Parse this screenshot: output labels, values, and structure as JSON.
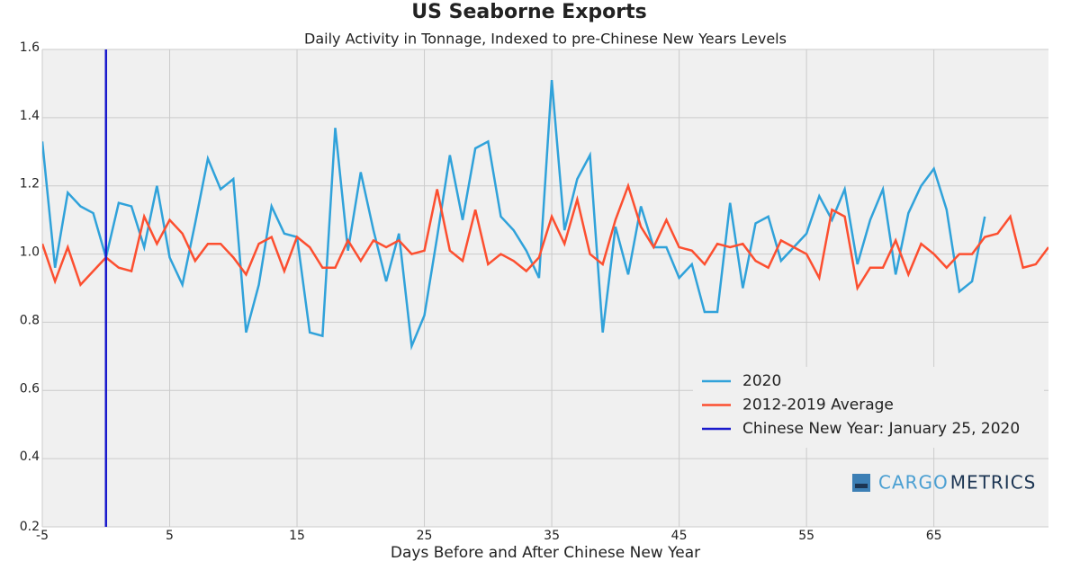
{
  "chart_data": {
    "type": "line",
    "title": "US Seaborne Exports",
    "subtitle": "Daily Activity in Tonnage, Indexed to pre-Chinese New Years Levels",
    "x_label": "Days Before and After Chinese New Year",
    "xlim": [
      -5,
      74
    ],
    "ylim": [
      0.2,
      1.6
    ],
    "xticks": [
      -5,
      5,
      15,
      25,
      35,
      45,
      55,
      65
    ],
    "yticks": [
      0.2,
      0.4,
      0.6,
      0.8,
      {
        "value": 1,
        "label": "1.0"
      },
      1.2,
      1.4,
      1.6
    ],
    "grid": true,
    "legend_position": "lower right",
    "series": [
      {
        "name": "2020",
        "color": "#30a2da",
        "x": [
          -5,
          -4,
          -3,
          -2,
          -1,
          0,
          1,
          2,
          3,
          4,
          5,
          6,
          7,
          8,
          9,
          10,
          11,
          12,
          13,
          14,
          15,
          16,
          17,
          18,
          19,
          20,
          21,
          22,
          23,
          24,
          25,
          26,
          27,
          28,
          29,
          30,
          31,
          32,
          33,
          34,
          35,
          36,
          37,
          38,
          39,
          40,
          41,
          42,
          43,
          44,
          45,
          46,
          47,
          48,
          49,
          50,
          51,
          52,
          53,
          54,
          55,
          56,
          57,
          58,
          59,
          60,
          61,
          62,
          63,
          64,
          65,
          66,
          67,
          68,
          69
        ],
        "values": [
          1.33,
          0.96,
          1.18,
          1.14,
          1.12,
          0.99,
          1.15,
          1.14,
          1.02,
          1.2,
          0.99,
          0.91,
          1.09,
          1.28,
          1.19,
          1.22,
          0.77,
          0.91,
          1.14,
          1.06,
          1.05,
          0.77,
          0.76,
          1.37,
          1.01,
          1.24,
          1.07,
          0.92,
          1.06,
          0.73,
          0.82,
          1.05,
          1.29,
          1.1,
          1.31,
          1.33,
          1.11,
          1.07,
          1.01,
          0.93,
          1.51,
          1.07,
          1.22,
          1.29,
          0.77,
          1.08,
          0.94,
          1.14,
          1.02,
          1.02,
          0.93,
          0.97,
          0.83,
          0.83,
          1.15,
          0.9,
          1.09,
          1.11,
          0.98,
          1.02,
          1.06,
          1.17,
          1.1,
          1.19,
          0.97,
          1.1,
          1.19,
          0.94,
          1.12,
          1.2,
          1.25,
          1.13,
          0.89,
          0.92,
          1.11
        ]
      },
      {
        "name": "2012-2019 Average",
        "color": "#fc4f30",
        "x": [
          -5,
          -4,
          -3,
          -2,
          -1,
          0,
          1,
          2,
          3,
          4,
          5,
          6,
          7,
          8,
          9,
          10,
          11,
          12,
          13,
          14,
          15,
          16,
          17,
          18,
          19,
          20,
          21,
          22,
          23,
          24,
          25,
          26,
          27,
          28,
          29,
          30,
          31,
          32,
          33,
          34,
          35,
          36,
          37,
          38,
          39,
          40,
          41,
          42,
          43,
          44,
          45,
          46,
          47,
          48,
          49,
          50,
          51,
          52,
          53,
          54,
          55,
          56,
          57,
          58,
          59,
          60,
          61,
          62,
          63,
          64,
          65,
          66,
          67,
          68,
          69,
          70,
          71,
          72,
          73,
          74
        ],
        "values": [
          1.03,
          0.92,
          1.02,
          0.91,
          0.95,
          0.99,
          0.96,
          0.95,
          1.11,
          1.03,
          1.1,
          1.06,
          0.98,
          1.03,
          1.03,
          0.99,
          0.94,
          1.03,
          1.05,
          0.95,
          1.05,
          1.02,
          0.96,
          0.96,
          1.04,
          0.98,
          1.04,
          1.02,
          1.04,
          1.0,
          1.01,
          1.19,
          1.01,
          0.98,
          1.13,
          0.97,
          1.0,
          0.98,
          0.95,
          0.99,
          1.11,
          1.03,
          1.16,
          1.0,
          0.97,
          1.1,
          1.2,
          1.08,
          1.02,
          1.1,
          1.02,
          1.01,
          0.97,
          1.03,
          1.02,
          1.03,
          0.98,
          0.96,
          1.04,
          1.02,
          1.0,
          0.93,
          1.13,
          1.11,
          0.9,
          0.96,
          0.96,
          1.04,
          0.94,
          1.03,
          1.0,
          0.96,
          1.0,
          1.0,
          1.05,
          1.06,
          1.11,
          0.96,
          0.97,
          1.02
        ]
      }
    ],
    "vlines": [
      {
        "name": "Chinese New Year: January 25, 2020",
        "color": "#1a1acc",
        "x": 0
      }
    ],
    "watermark": [
      "CARGO",
      "METRICS"
    ]
  }
}
